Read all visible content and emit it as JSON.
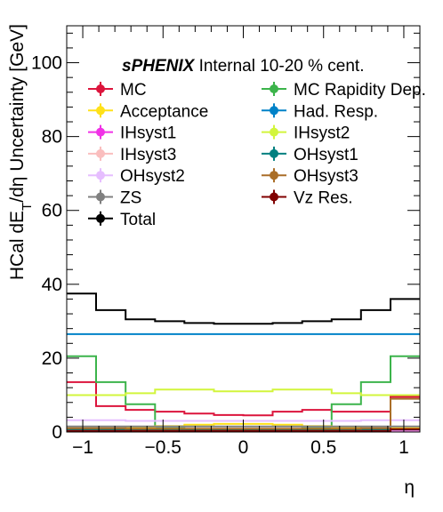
{
  "chart_data": {
    "type": "line",
    "header": {
      "experiment": "sPHENIX",
      "status": "Internal",
      "centrality": "10-20 % cent."
    },
    "xlabel": "η",
    "ylabel": "HCal dE_T/dη Uncertainty [GeV]",
    "xlim": [
      -1.1,
      1.1
    ],
    "ylim": [
      0,
      110
    ],
    "xticks": [
      -1,
      -0.5,
      0,
      0.5,
      1
    ],
    "xtick_labels": [
      "−1",
      "−0.5",
      "0",
      "0.5",
      "1"
    ],
    "yticks": [
      0,
      20,
      40,
      60,
      80,
      100
    ],
    "ytick_labels": [
      "0",
      "20",
      "40",
      "60",
      "80",
      "100"
    ],
    "bin_edges": [
      -1.1,
      -0.917,
      -0.733,
      -0.55,
      -0.367,
      -0.183,
      0.0,
      0.183,
      0.367,
      0.55,
      0.733,
      0.917,
      1.1
    ],
    "legend_position": "top",
    "series": [
      {
        "name": "MC",
        "color": "#dc143c",
        "values": [
          13.5,
          7.0,
          6.0,
          5.5,
          5.0,
          4.6,
          4.5,
          5.5,
          6.0,
          5.5,
          5.5,
          9.5
        ]
      },
      {
        "name": "MC Rapidity Dep.",
        "color": "#3cb44b",
        "values": [
          20.5,
          13.5,
          7.5,
          1.0,
          0.6,
          0.5,
          0.5,
          0.6,
          1.0,
          7.5,
          13.5,
          20.5
        ]
      },
      {
        "name": "Acceptance",
        "color": "#ffe119",
        "values": [
          1.0,
          1.0,
          1.2,
          1.6,
          2.0,
          2.2,
          2.2,
          2.0,
          1.6,
          1.2,
          1.0,
          1.0
        ]
      },
      {
        "name": "Had. Resp.",
        "color": "#0082c8",
        "values": [
          26.5,
          26.5,
          26.5,
          26.5,
          26.5,
          26.5,
          26.5,
          26.5,
          26.5,
          26.5,
          26.5,
          26.5
        ]
      },
      {
        "name": "IHsyst1",
        "color": "#f032e6",
        "values": [
          0.4,
          0.4,
          0.4,
          0.4,
          0.4,
          0.4,
          0.4,
          0.4,
          0.4,
          0.4,
          0.4,
          0.4
        ]
      },
      {
        "name": "IHsyst2",
        "color": "#d2f53c",
        "values": [
          10.0,
          10.0,
          10.5,
          11.5,
          11.5,
          11.0,
          11.0,
          11.5,
          11.5,
          10.5,
          10.0,
          10.0
        ]
      },
      {
        "name": "IHsyst3",
        "color": "#fabebe",
        "values": [
          0.6,
          0.6,
          0.6,
          0.6,
          0.6,
          0.6,
          0.6,
          0.6,
          0.6,
          0.6,
          0.6,
          0.6
        ]
      },
      {
        "name": "OHsyst1",
        "color": "#008080",
        "values": [
          0.7,
          0.7,
          0.7,
          0.7,
          0.7,
          0.7,
          0.7,
          0.7,
          0.7,
          0.7,
          0.7,
          0.7
        ]
      },
      {
        "name": "OHsyst2",
        "color": "#e6beff",
        "values": [
          3.2,
          3.2,
          3.0,
          3.0,
          3.0,
          3.0,
          3.0,
          3.0,
          3.0,
          3.0,
          3.2,
          3.2
        ]
      },
      {
        "name": "OHsyst3",
        "color": "#aa6e28",
        "values": [
          1.0,
          1.0,
          0.9,
          0.9,
          0.9,
          0.9,
          0.9,
          0.9,
          0.9,
          0.9,
          1.0,
          9.0
        ]
      },
      {
        "name": "ZS",
        "color": "#808080",
        "values": [
          1.5,
          1.5,
          1.5,
          1.5,
          1.5,
          1.5,
          1.5,
          1.5,
          1.5,
          1.5,
          1.5,
          1.5
        ]
      },
      {
        "name": "Vz Res.",
        "color": "#800000",
        "values": [
          0.3,
          0.3,
          0.3,
          0.3,
          0.3,
          0.3,
          0.3,
          0.3,
          0.3,
          0.3,
          0.3,
          0.8
        ]
      },
      {
        "name": "Total",
        "color": "#000000",
        "values": [
          37.5,
          33.0,
          30.5,
          30.0,
          29.5,
          29.3,
          29.3,
          29.5,
          30.0,
          30.5,
          33.0,
          36.0
        ]
      }
    ]
  }
}
